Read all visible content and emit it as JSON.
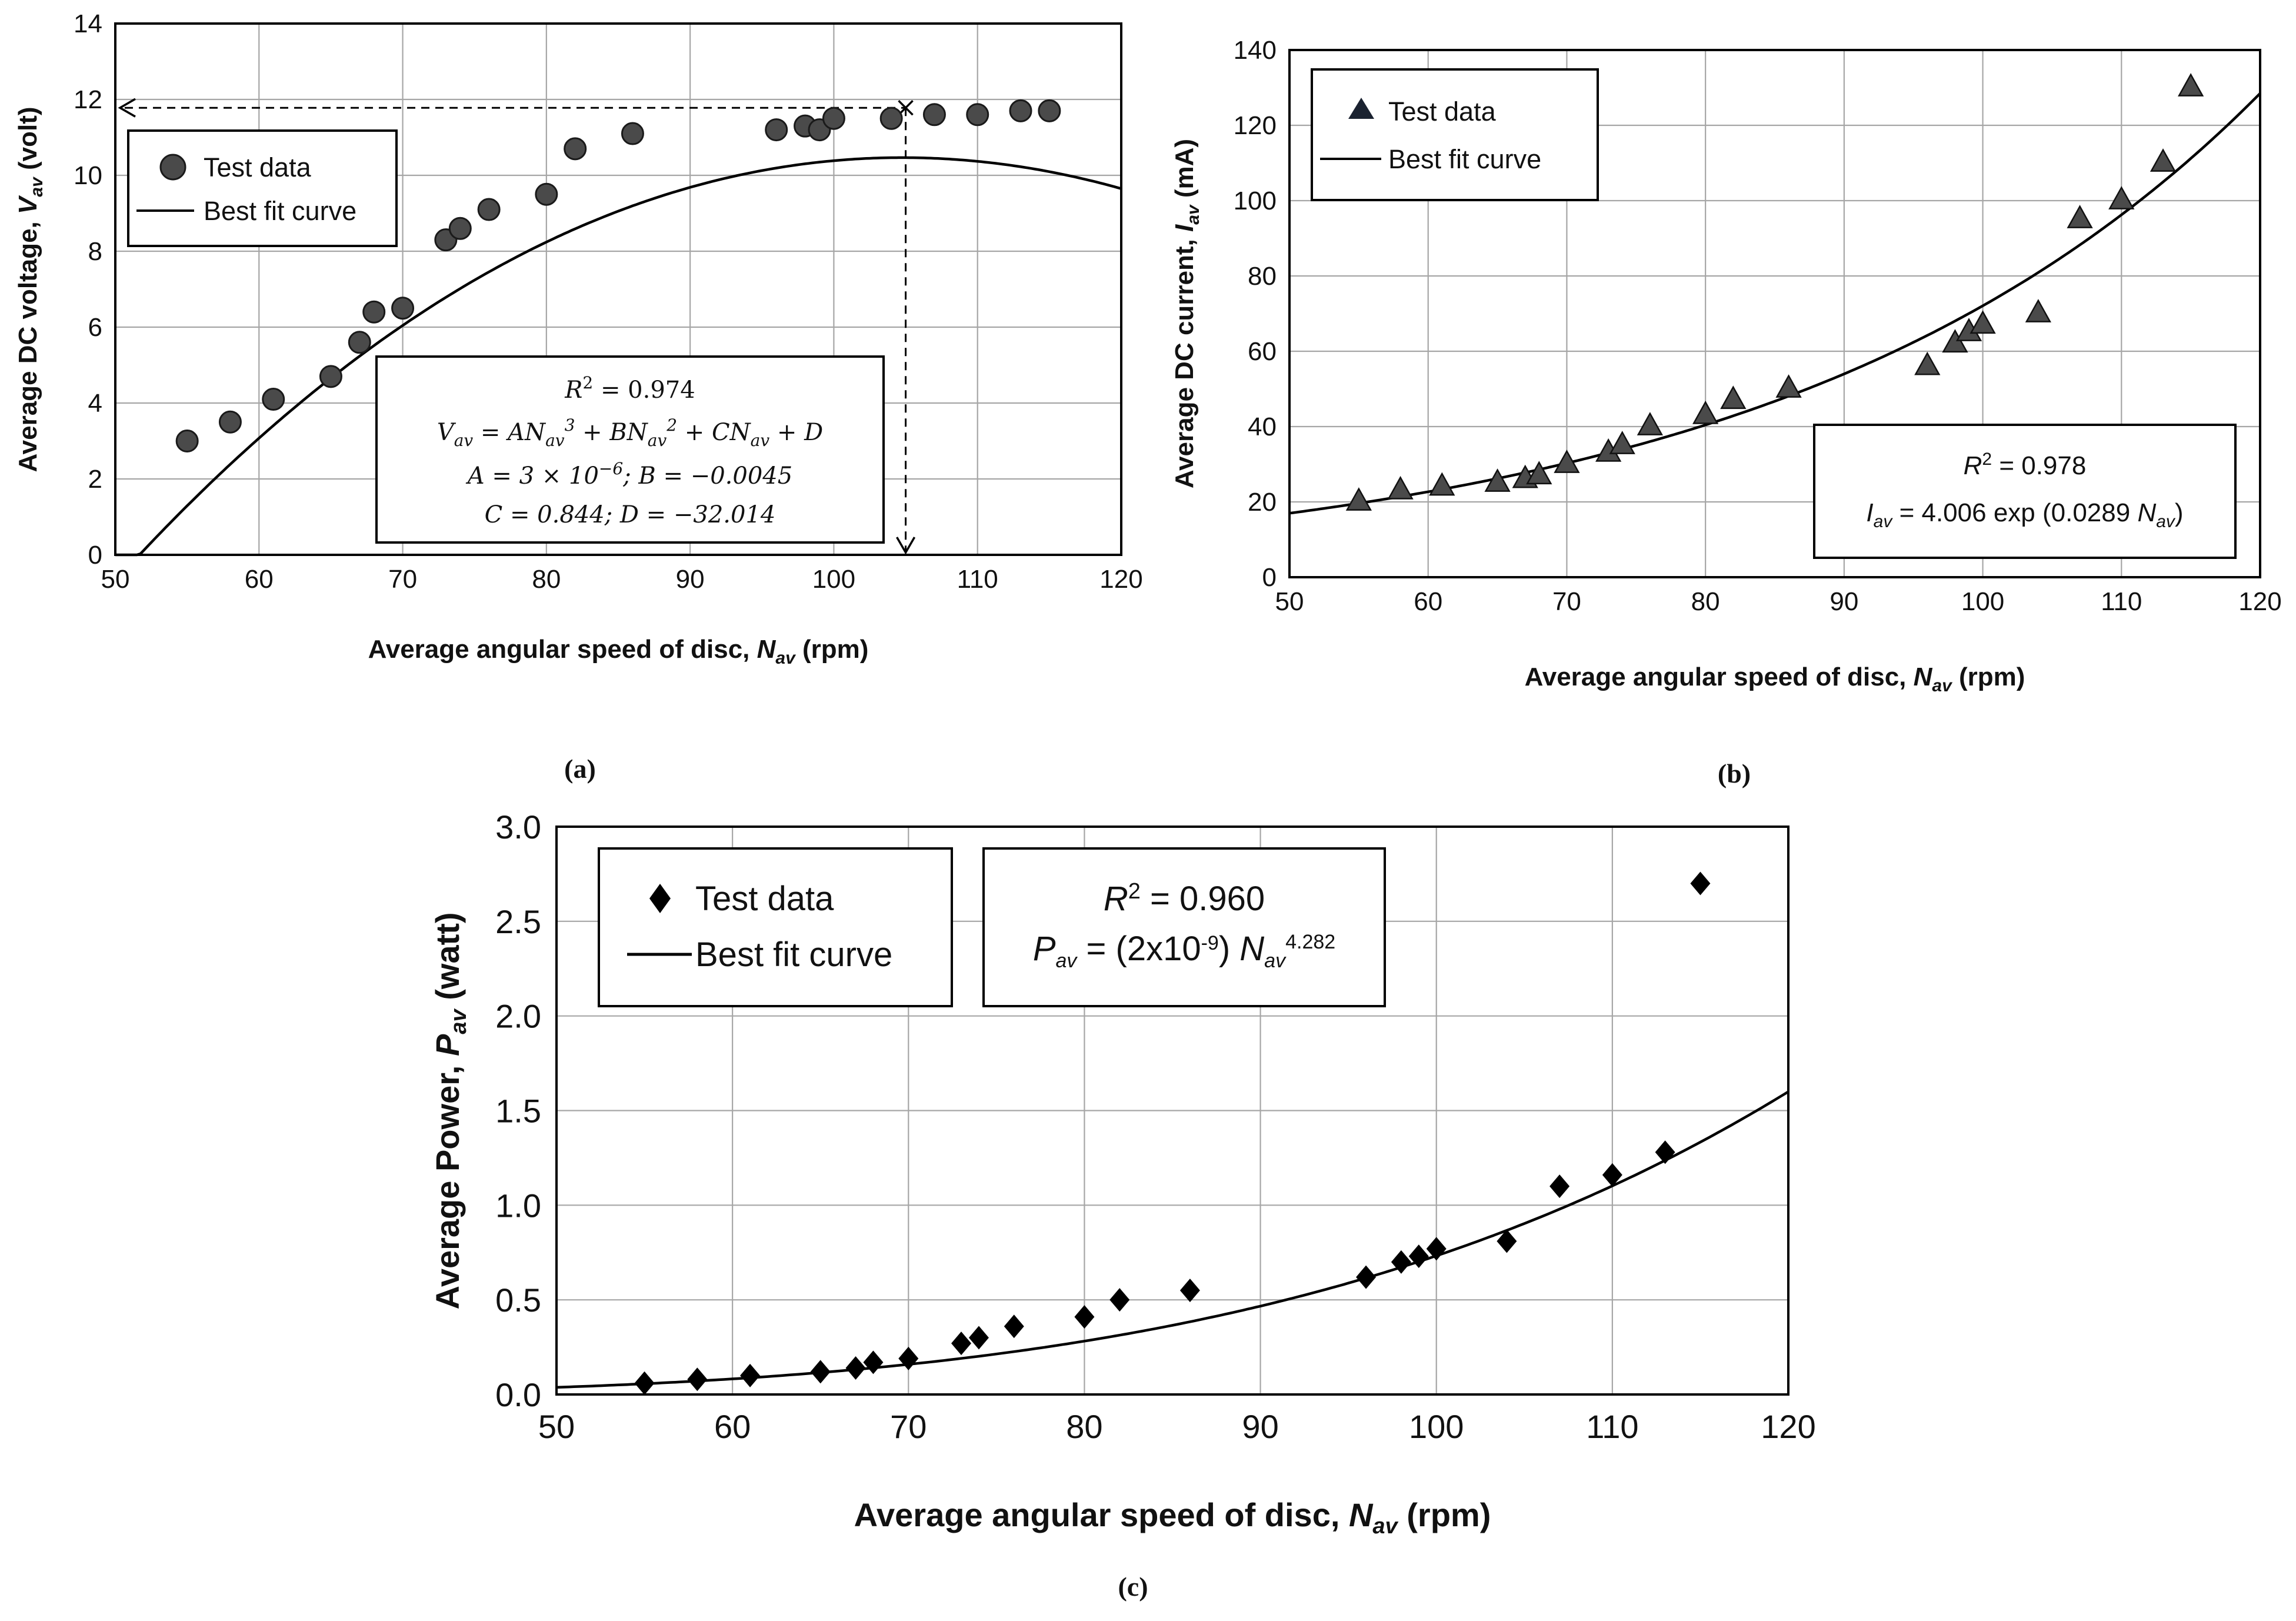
{
  "chart_data": [
    {
      "panel": "(a)",
      "type": "scatter",
      "xlabel": "Average angular speed of disc, ",
      "xlabel_sym": "N",
      "xlabel_sub": "av",
      "xlabel_unit": " (rpm)",
      "ylabel": "Average DC voltage, ",
      "ylabel_sym": "V",
      "ylabel_sub": "av",
      "ylabel_unit": " (volt)",
      "xlim": [
        50,
        120
      ],
      "ylim": [
        0,
        14
      ],
      "xticks": [
        "50",
        "60",
        "70",
        "80",
        "90",
        "100",
        "110",
        "120"
      ],
      "yticks": [
        "0",
        "2",
        "4",
        "6",
        "8",
        "10",
        "12",
        "14"
      ],
      "legend": [
        "Test data",
        "Best fit curve"
      ],
      "series": [
        {
          "name": "Test data",
          "marker": "circle",
          "x": [
            55,
            58,
            61,
            65,
            67,
            68,
            70,
            73,
            74,
            76,
            80,
            82,
            86,
            96,
            98,
            99,
            100,
            104,
            107,
            110,
            113,
            115
          ],
          "y": [
            3.0,
            3.5,
            4.1,
            4.7,
            5.6,
            6.4,
            6.5,
            8.3,
            8.6,
            9.1,
            9.5,
            10.7,
            11.1,
            11.2,
            11.3,
            11.2,
            11.5,
            11.5,
            11.6,
            11.6,
            11.7,
            11.7
          ]
        },
        {
          "name": "Best fit curve",
          "type": "line",
          "model": "cubic",
          "coefficients": {
            "A": 3e-06,
            "B": -0.0045,
            "C": 0.844,
            "D": -32.014
          }
        }
      ],
      "annotation": {
        "marker_x": 105,
        "marker_y": 11.78,
        "r2": "R² = 0.974",
        "equation": "Vav =  ANav³ + BNav² + CNav + D",
        "coef_line1": "A = 3 × 10⁻⁶; B = −0.0045",
        "coef_line2": "C = 0.844; D = −32.014"
      }
    },
    {
      "panel": "(b)",
      "type": "scatter",
      "xlabel": "Average angular speed of disc, ",
      "xlabel_sym": "N",
      "xlabel_sub": "av",
      "xlabel_unit": " (rpm)",
      "ylabel": "Average DC current, ",
      "ylabel_sym": "I",
      "ylabel_sub": "av",
      "ylabel_unit": " (mA)",
      "xlim": [
        50,
        120
      ],
      "ylim": [
        0,
        140
      ],
      "xticks": [
        "50",
        "60",
        "70",
        "80",
        "90",
        "100",
        "110",
        "120"
      ],
      "yticks": [
        "0",
        "20",
        "40",
        "60",
        "80",
        "100",
        "120",
        "140"
      ],
      "legend": [
        "Test data",
        "Best fit curve"
      ],
      "series": [
        {
          "name": "Test data",
          "marker": "triangle",
          "x": [
            55,
            58,
            61,
            65,
            67,
            68,
            70,
            73,
            74,
            76,
            80,
            82,
            86,
            96,
            98,
            99,
            100,
            104,
            107,
            110,
            113,
            115
          ],
          "y": [
            20,
            23,
            24,
            25,
            26,
            27,
            30,
            33,
            35,
            40,
            43,
            47,
            50,
            56,
            62,
            65,
            67,
            70,
            95,
            100,
            110,
            130
          ]
        },
        {
          "name": "Best fit curve",
          "type": "line",
          "model": "exponential",
          "coefficients": {
            "a": 4.006,
            "b": 0.0289
          }
        }
      ],
      "annotation": {
        "r2": "R² = 0.978",
        "equation": "Iav = 4.006 exp (0.0289 Nav)"
      }
    },
    {
      "panel": "(c)",
      "type": "scatter",
      "xlabel": "Average angular speed of disc, ",
      "xlabel_sym": "N",
      "xlabel_sub": "av",
      "xlabel_unit": " (rpm)",
      "ylabel": "Average Power, ",
      "ylabel_sym": "P",
      "ylabel_sub": "av",
      "ylabel_unit": " (watt)",
      "xlim": [
        50,
        120
      ],
      "ylim": [
        0,
        3.0
      ],
      "xticks": [
        "50",
        "60",
        "70",
        "80",
        "90",
        "100",
        "110",
        "120"
      ],
      "yticks": [
        "0.0",
        "0.5",
        "1.0",
        "1.5",
        "2.0",
        "2.5",
        "3.0"
      ],
      "legend": [
        "Test data",
        "Best fit curve"
      ],
      "series": [
        {
          "name": "Test data",
          "marker": "diamond",
          "x": [
            55,
            58,
            61,
            65,
            67,
            68,
            70,
            73,
            74,
            76,
            80,
            82,
            86,
            96,
            98,
            99,
            100,
            104,
            107,
            110,
            113,
            115
          ],
          "y": [
            0.06,
            0.08,
            0.1,
            0.12,
            0.14,
            0.17,
            0.19,
            0.27,
            0.3,
            0.36,
            0.41,
            0.5,
            0.55,
            0.62,
            0.7,
            0.73,
            0.77,
            0.81,
            1.1,
            1.16,
            1.28,
            2.7
          ]
        },
        {
          "name": "Best fit curve",
          "type": "line",
          "model": "power",
          "coefficients": {
            "a": 2e-09,
            "b": 4.282
          }
        }
      ],
      "annotation": {
        "r2": "R² = 0.960",
        "equation": "Pav = (2x10⁻⁹) Nav^4.282"
      }
    }
  ],
  "labels": {
    "a": "(a)",
    "b": "(b)",
    "c": "(c)",
    "eq_a": {
      "r2_pre": "R",
      "r2_sup": "2",
      "r2_post": " = 0.974",
      "v": "V",
      "v_sub": "av",
      "eq_mid": " =  AN",
      "sub1": "av",
      "sup1": "3",
      "plus_b": " + BN",
      "sub2": "av",
      "sup2": "2",
      "plus_c": " + CN",
      "sub3": "av",
      "plus_d": " + D",
      "line3_pre": "A = 3 × 10",
      "line3_sup": "−6",
      "line3_post": "; B = −0.0045",
      "line4": "C = 0.844; D = −32.014"
    },
    "eq_b": {
      "r2_pre": "R",
      "r2_sup": "2",
      "r2_post": " = 0.978",
      "i": "I",
      "i_sub": "av",
      "mid": " = 4.006 exp (0.0289 ",
      "n": "N",
      "n_sub": "av",
      "close": ")"
    },
    "eq_c": {
      "r2_pre": "R",
      "r2_sup": "2",
      "r2_post": " = 0.960",
      "p": "P",
      "p_sub": "av",
      "mid": " = (2x10",
      "mid_sup": "-9",
      "mid2": ") ",
      "n": "N",
      "n_sub": "av",
      "n_sup": "4.282"
    }
  }
}
